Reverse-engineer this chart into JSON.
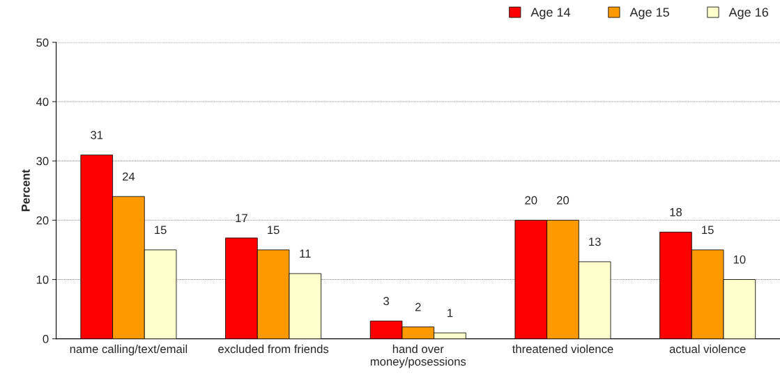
{
  "chart_data": {
    "type": "bar",
    "ylabel": "Percent",
    "categories": [
      "name calling/text/email",
      "excluded from friends",
      "hand over\nmoney/posessions",
      "threatened violence",
      "actual violence"
    ],
    "series": [
      {
        "name": "Age 14",
        "color": "#ff0000",
        "values": [
          31,
          17,
          3,
          20,
          18
        ]
      },
      {
        "name": "Age 15",
        "color": "#ff9900",
        "values": [
          24,
          15,
          2,
          20,
          15
        ]
      },
      {
        "name": "Age 16",
        "color": "#ffffcc",
        "values": [
          15,
          11,
          1,
          13,
          10
        ]
      }
    ],
    "ylim": [
      0,
      50
    ],
    "yticks": [
      0,
      10,
      20,
      30,
      40,
      50
    ],
    "grid": "y",
    "legend": "top right",
    "data_labels": true
  }
}
